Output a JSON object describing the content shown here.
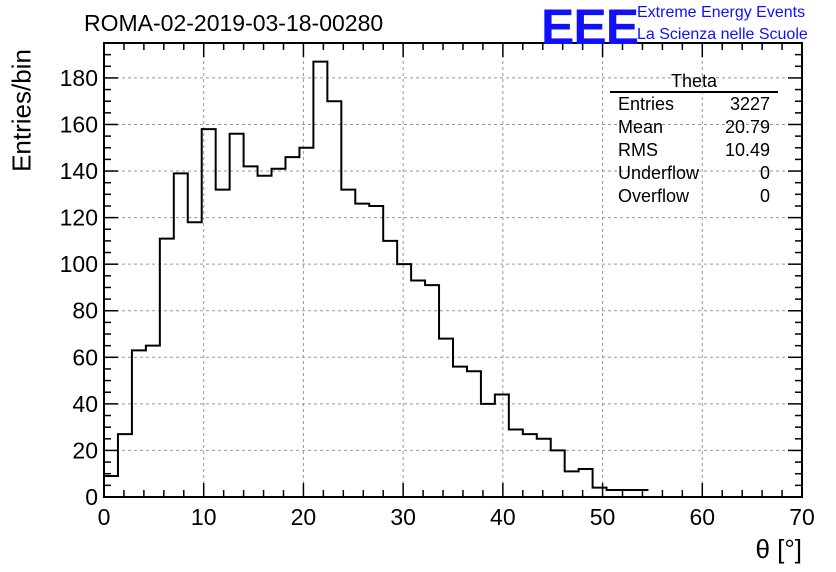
{
  "header": {
    "run_title": "ROMA-02-2019-03-18-00280"
  },
  "logo": {
    "mark": "EEE",
    "line1": "Extreme Energy Events",
    "line2": "La Scienza nelle Scuole",
    "color": "#1010ff"
  },
  "stats": {
    "title": "Theta",
    "rows": [
      {
        "label": "Entries",
        "value": "3227"
      },
      {
        "label": "Mean",
        "value": "20.79"
      },
      {
        "label": "RMS",
        "value": "10.49"
      },
      {
        "label": "Underflow",
        "value": "0"
      },
      {
        "label": "Overflow",
        "value": "0"
      }
    ]
  },
  "chart_data": {
    "type": "histogram",
    "title": "",
    "xlabel": "θ [°]",
    "ylabel": "Entries/bin",
    "xlim": [
      0,
      70
    ],
    "ylim": [
      0,
      195
    ],
    "x_ticks": [
      0,
      10,
      20,
      30,
      40,
      50,
      60,
      70
    ],
    "y_ticks": [
      0,
      20,
      40,
      60,
      80,
      100,
      120,
      140,
      160,
      180
    ],
    "grid": true,
    "bin_width": 1.4,
    "bin_start": 0,
    "values": [
      9,
      27,
      63,
      65,
      111,
      139,
      118,
      158,
      132,
      156,
      142,
      138,
      141,
      146,
      150,
      187,
      170,
      132,
      126,
      125,
      110,
      100,
      93,
      91,
      68,
      56,
      54,
      40,
      44,
      29,
      27,
      25,
      20,
      11,
      12,
      4,
      3,
      3,
      3
    ]
  }
}
